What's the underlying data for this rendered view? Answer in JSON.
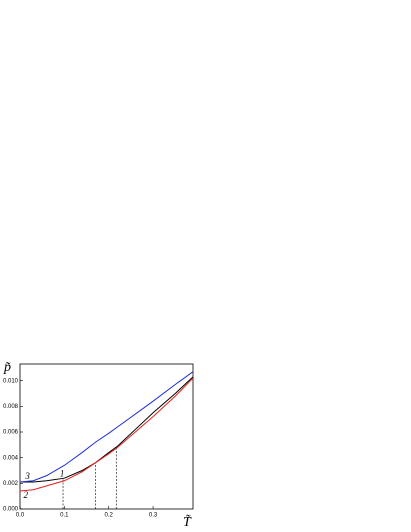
{
  "chart_data": {
    "type": "line",
    "xlabel": "T̃",
    "ylabel": "p̃",
    "x": [
      0,
      0.03,
      0.06,
      0.1,
      0.14,
      0.17,
      0.2,
      0.22,
      0.26,
      0.3,
      0.35,
      0.39
    ],
    "series": [
      {
        "name": "1",
        "color": "#000000",
        "values": [
          0.0021,
          0.0021,
          0.0022,
          0.0024,
          0.003,
          0.0036,
          0.0044,
          0.0049,
          0.0062,
          0.0075,
          0.009,
          0.0103
        ]
      },
      {
        "name": "2",
        "color": "#e0201a",
        "values": [
          0.0014,
          0.0015,
          0.0018,
          0.0022,
          0.0029,
          0.0036,
          0.0043,
          0.0048,
          0.006,
          0.0072,
          0.0088,
          0.0102
        ]
      },
      {
        "name": "3",
        "color": "#1f2fd6",
        "values": [
          0.0021,
          0.0022,
          0.0026,
          0.0034,
          0.0044,
          0.0052,
          0.0059,
          0.0064,
          0.0074,
          0.0084,
          0.0097,
          0.0107
        ]
      }
    ],
    "label_positions": [
      {
        "x": 0.09,
        "y": 0.0027
      },
      {
        "x": 0.008,
        "y": 0.001
      },
      {
        "x": 0.012,
        "y": 0.0025
      }
    ],
    "dropdowns": [
      {
        "x": 0.097,
        "y": 0.0023
      },
      {
        "x": 0.17,
        "y": 0.0036
      },
      {
        "x": 0.217,
        "y": 0.0049
      }
    ],
    "xlim": [
      0,
      0.39
    ],
    "ylim": [
      0,
      0.0113
    ],
    "xticks": [
      {
        "value": 0,
        "label": "0.0"
      },
      0.1,
      0.2,
      0.3
    ],
    "yticks": [
      {
        "value": 0,
        "label": "0.000"
      },
      {
        "value": 0.002,
        "label": "0.002"
      },
      {
        "value": 0.004,
        "label": "0.004"
      },
      {
        "value": 0.006,
        "label": "0.006"
      },
      {
        "value": 0.008,
        "label": "0.008"
      },
      {
        "value": 0.01,
        "label": "0.010"
      }
    ]
  }
}
